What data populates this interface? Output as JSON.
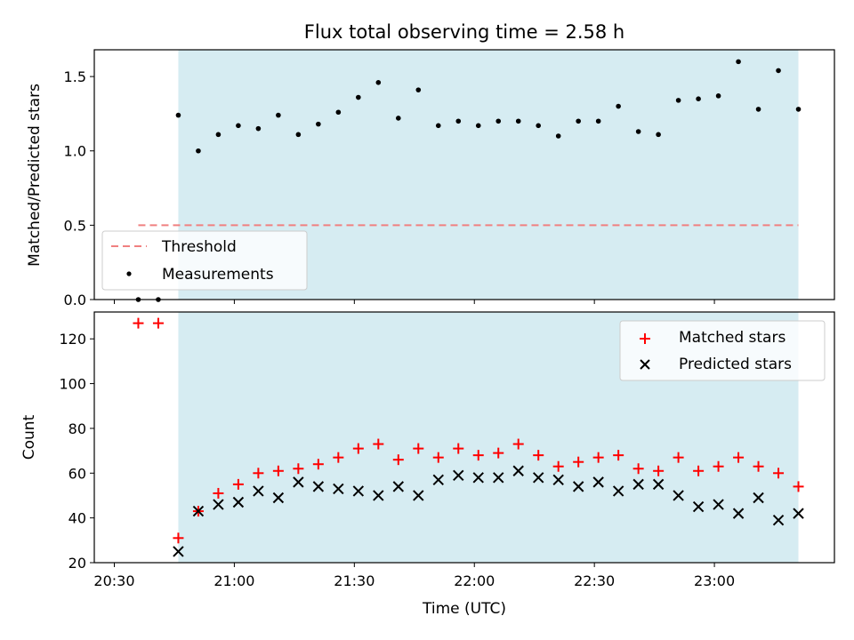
{
  "chart_data": {
    "type": "scatter",
    "title": "Flux total observing time = 2.58 h",
    "x_unit": "time (UTC)",
    "xlabel": "Time (UTC)",
    "xlim": [
      "20:25",
      "23:30"
    ],
    "x_tick_labels": [
      "20:30",
      "21:00",
      "21:30",
      "22:00",
      "22:30",
      "23:00"
    ],
    "x": [
      "20:36",
      "20:41",
      "20:46",
      "20:51",
      "20:56",
      "21:01",
      "21:06",
      "21:11",
      "21:16",
      "21:21",
      "21:26",
      "21:31",
      "21:36",
      "21:41",
      "21:46",
      "21:51",
      "21:56",
      "22:01",
      "22:06",
      "22:11",
      "22:16",
      "22:21",
      "22:26",
      "22:31",
      "22:36",
      "22:41",
      "22:46",
      "22:51",
      "22:56",
      "23:01",
      "23:06",
      "23:11",
      "23:16",
      "23:21"
    ],
    "observing_span": {
      "start": "20:46",
      "end": "23:21",
      "color": "#d4ebf1"
    },
    "panels": [
      {
        "ylabel": "Matched/Predicted stars",
        "ylim": [
          0,
          1.68
        ],
        "y_ticks": [
          0.0,
          0.5,
          1.0,
          1.5
        ],
        "y_tick_labels": [
          "0.0",
          "0.5",
          "1.0",
          "1.5"
        ],
        "threshold": {
          "name": "Threshold",
          "value": 0.5,
          "x_start": "20:36",
          "x_end": "23:21",
          "color": "#f08080"
        },
        "series": [
          {
            "name": "Measurements",
            "marker": "dot",
            "color": "#000000",
            "values": [
              0.0,
              0.0,
              1.24,
              1.0,
              1.11,
              1.17,
              1.15,
              1.24,
              1.11,
              1.18,
              1.26,
              1.36,
              1.46,
              1.22,
              1.41,
              1.17,
              1.2,
              1.17,
              1.2,
              1.2,
              1.17,
              1.1,
              1.2,
              1.2,
              1.3,
              1.13,
              1.11,
              1.34,
              1.35,
              1.37,
              1.6,
              1.28,
              1.54,
              1.28
            ]
          }
        ],
        "legend": {
          "placement": "lower-left",
          "entries": [
            "Threshold",
            "Measurements"
          ]
        }
      },
      {
        "ylabel": "Count",
        "ylim": [
          20,
          132
        ],
        "y_ticks": [
          20,
          40,
          60,
          80,
          100,
          120
        ],
        "y_tick_labels": [
          "20",
          "40",
          "60",
          "80",
          "100",
          "120"
        ],
        "series": [
          {
            "name": "Matched stars",
            "marker": "plus",
            "color": "#ff0000",
            "values": [
              127,
              127,
              31,
              43,
              51,
              55,
              60,
              61,
              62,
              64,
              67,
              71,
              73,
              66,
              71,
              67,
              71,
              68,
              69,
              73,
              68,
              63,
              65,
              67,
              68,
              62,
              61,
              67,
              61,
              63,
              67,
              63,
              60,
              54
            ]
          },
          {
            "name": "Predicted stars",
            "marker": "x",
            "color": "#000000",
            "values": [
              null,
              null,
              25,
              43,
              46,
              47,
              52,
              49,
              56,
              54,
              53,
              52,
              50,
              54,
              50,
              57,
              59,
              58,
              58,
              61,
              58,
              57,
              54,
              56,
              52,
              55,
              55,
              50,
              45,
              46,
              42,
              49,
              39,
              42
            ]
          }
        ],
        "legend": {
          "placement": "upper-right",
          "entries": [
            "Matched stars",
            "Predicted stars"
          ]
        }
      }
    ]
  }
}
